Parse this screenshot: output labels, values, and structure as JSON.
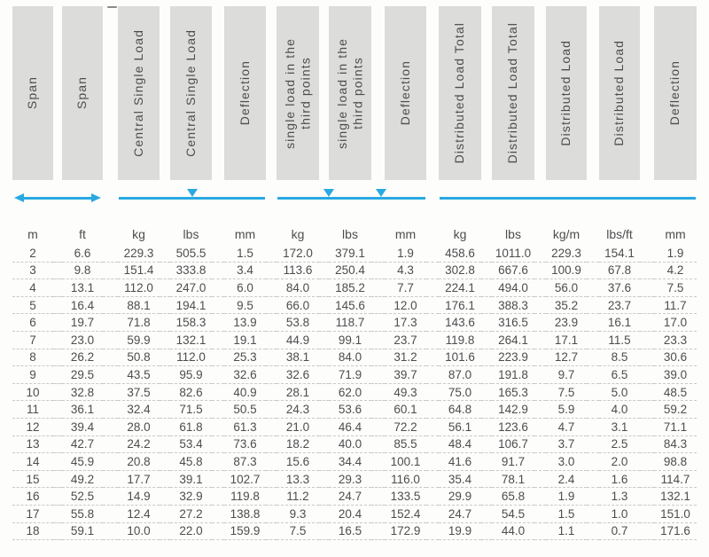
{
  "colors": {
    "accent_blue": "#29a9e1",
    "header_box_bg": "#dcdcda",
    "text": "#4d4d4d",
    "dashed_separator": "#c9c9c7"
  },
  "columns": [
    {
      "label": "Span",
      "unit": "m"
    },
    {
      "label": "Span",
      "unit": "ft"
    },
    {
      "label": "Central Single Load",
      "unit": "kg"
    },
    {
      "label": "Central Single Load",
      "unit": "lbs"
    },
    {
      "label": "Deflection",
      "unit": "mm"
    },
    {
      "label": "single load in the\nthird points",
      "unit": "kg"
    },
    {
      "label": "single load in the\nthird points",
      "unit": "lbs"
    },
    {
      "label": "Deflection",
      "unit": "mm"
    },
    {
      "label": "Distributed Load Total",
      "unit": "kg"
    },
    {
      "label": "Distributed Load Total",
      "unit": "lbs"
    },
    {
      "label": "Distributed Load",
      "unit": "kg/m"
    },
    {
      "label": "Distributed Load",
      "unit": "lbs/ft"
    },
    {
      "label": "Deflection",
      "unit": "mm"
    }
  ],
  "icons": {
    "span_group": "double-headed-horizontal-arrow",
    "central_single_load_group": "beam-line-with-one-down-triangle-at-center",
    "third_points_load_group": "beam-line-with-two-down-triangles-at-thirds",
    "distributed_load_group": "plain-beam-line"
  },
  "table": {
    "units": [
      "m",
      "ft",
      "kg",
      "lbs",
      "mm",
      "kg",
      "lbs",
      "mm",
      "kg",
      "lbs",
      "kg/m",
      "lbs/ft",
      "mm"
    ],
    "rows": [
      [
        "2",
        "6.6",
        "229.3",
        "505.5",
        "1.5",
        "172.0",
        "379.1",
        "1.9",
        "458.6",
        "1011.0",
        "229.3",
        "154.1",
        "1.9"
      ],
      [
        "3",
        "9.8",
        "151.4",
        "333.8",
        "3.4",
        "113.6",
        "250.4",
        "4.3",
        "302.8",
        "667.6",
        "100.9",
        "67.8",
        "4.2"
      ],
      [
        "4",
        "13.1",
        "112.0",
        "247.0",
        "6.0",
        "84.0",
        "185.2",
        "7.7",
        "224.1",
        "494.0",
        "56.0",
        "37.6",
        "7.5"
      ],
      [
        "5",
        "16.4",
        "88.1",
        "194.1",
        "9.5",
        "66.0",
        "145.6",
        "12.0",
        "176.1",
        "388.3",
        "35.2",
        "23.7",
        "11.7"
      ],
      [
        "6",
        "19.7",
        "71.8",
        "158.3",
        "13.9",
        "53.8",
        "118.7",
        "17.3",
        "143.6",
        "316.5",
        "23.9",
        "16.1",
        "17.0"
      ],
      [
        "7",
        "23.0",
        "59.9",
        "132.1",
        "19.1",
        "44.9",
        "99.1",
        "23.7",
        "119.8",
        "264.1",
        "17.1",
        "11.5",
        "23.3"
      ],
      [
        "8",
        "26.2",
        "50.8",
        "112.0",
        "25.3",
        "38.1",
        "84.0",
        "31.2",
        "101.6",
        "223.9",
        "12.7",
        "8.5",
        "30.6"
      ],
      [
        "9",
        "29.5",
        "43.5",
        "95.9",
        "32.6",
        "32.6",
        "71.9",
        "39.7",
        "87.0",
        "191.8",
        "9.7",
        "6.5",
        "39.0"
      ],
      [
        "10",
        "32.8",
        "37.5",
        "82.6",
        "40.9",
        "28.1",
        "62.0",
        "49.3",
        "75.0",
        "165.3",
        "7.5",
        "5.0",
        "48.5"
      ],
      [
        "11",
        "36.1",
        "32.4",
        "71.5",
        "50.5",
        "24.3",
        "53.6",
        "60.1",
        "64.8",
        "142.9",
        "5.9",
        "4.0",
        "59.2"
      ],
      [
        "12",
        "39.4",
        "28.0",
        "61.8",
        "61.3",
        "21.0",
        "46.4",
        "72.2",
        "56.1",
        "123.6",
        "4.7",
        "3.1",
        "71.1"
      ],
      [
        "13",
        "42.7",
        "24.2",
        "53.4",
        "73.6",
        "18.2",
        "40.0",
        "85.5",
        "48.4",
        "106.7",
        "3.7",
        "2.5",
        "84.3"
      ],
      [
        "14",
        "45.9",
        "20.8",
        "45.8",
        "87.3",
        "15.6",
        "34.4",
        "100.1",
        "41.6",
        "91.7",
        "3.0",
        "2.0",
        "98.8"
      ],
      [
        "15",
        "49.2",
        "17.7",
        "39.1",
        "102.7",
        "13.3",
        "29.3",
        "116.0",
        "35.4",
        "78.1",
        "2.4",
        "1.6",
        "114.7"
      ],
      [
        "16",
        "52.5",
        "14.9",
        "32.9",
        "119.8",
        "11.2",
        "24.7",
        "133.5",
        "29.9",
        "65.8",
        "1.9",
        "1.3",
        "132.1"
      ],
      [
        "17",
        "55.8",
        "12.4",
        "27.2",
        "138.8",
        "9.3",
        "20.4",
        "152.4",
        "24.7",
        "54.5",
        "1.5",
        "1.0",
        "151.0"
      ],
      [
        "18",
        "59.1",
        "10.0",
        "22.0",
        "159.9",
        "7.5",
        "16.5",
        "172.9",
        "19.9",
        "44.0",
        "1.1",
        "0.7",
        "171.6"
      ]
    ]
  }
}
